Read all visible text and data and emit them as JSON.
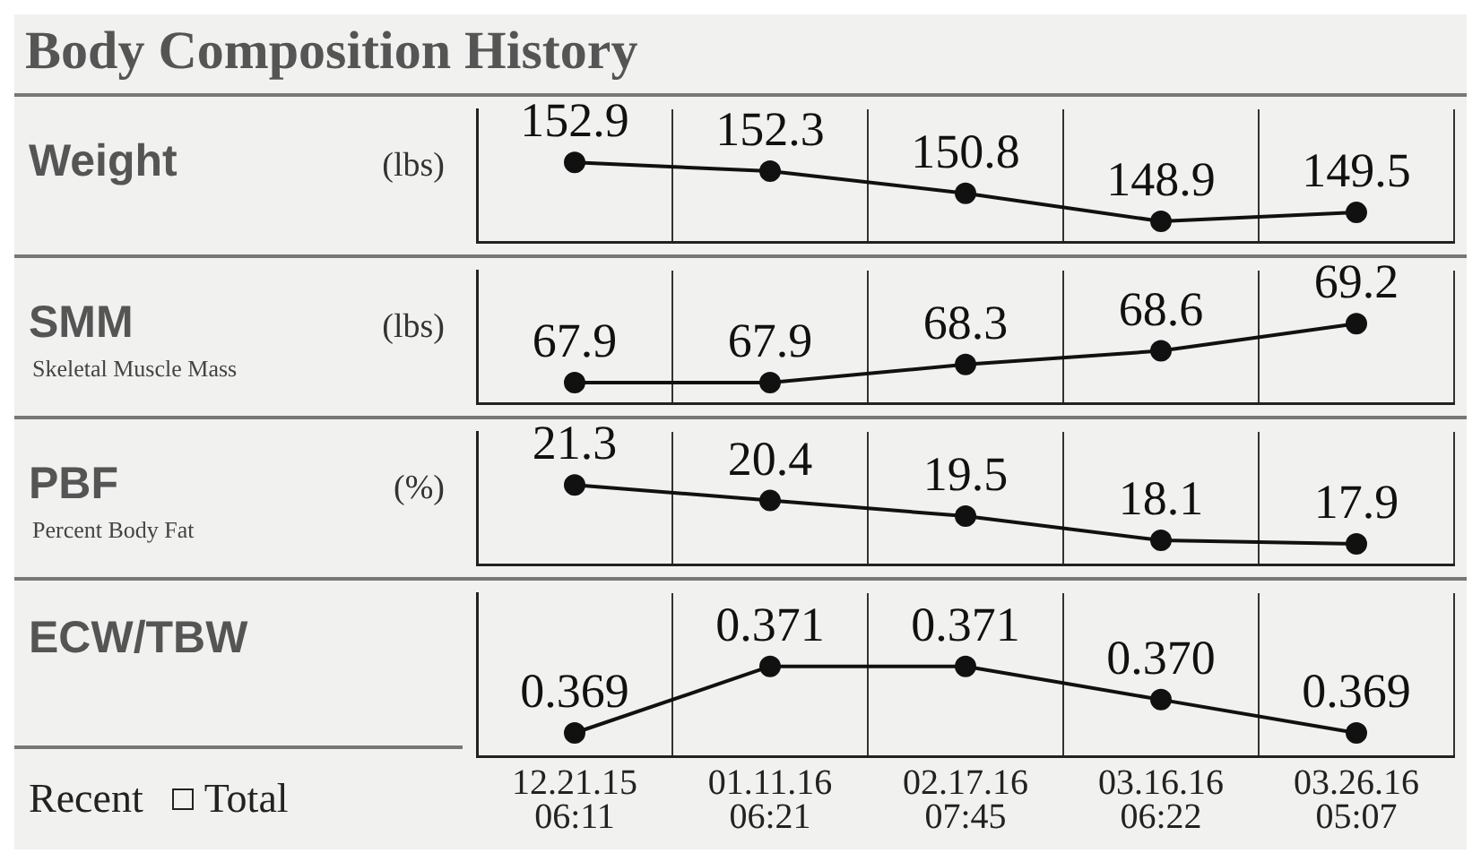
{
  "chart_data": [
    {
      "type": "line",
      "title": "Body Composition History",
      "ylabel": "Weight",
      "annotations": [
        "(lbs)"
      ],
      "categories": [
        null,
        null,
        null,
        null,
        null
      ],
      "series": [
        {
          "color": "#111111",
          "values": [
            152.9,
            152.3,
            150.8,
            148.9,
            149.5
          ]
        }
      ],
      "data_labels": true,
      "marker": "circle",
      "grid": "x",
      "tick_labels": false
    },
    {
      "type": "line",
      "ylabel": "SMM",
      "annotations": [
        "(lbs)",
        "Skeletal Muscle Mass"
      ],
      "categories": [
        null,
        null,
        null,
        null,
        null
      ],
      "series": [
        {
          "color": "#111111",
          "values": [
            67.9,
            67.9,
            68.3,
            68.6,
            69.2
          ]
        }
      ],
      "data_labels": true,
      "marker": "circle",
      "grid": "x",
      "tick_labels": false
    },
    {
      "type": "line",
      "ylabel": "PBF",
      "annotations": [
        "(%)",
        "Percent Body Fat"
      ],
      "categories": [
        null,
        null,
        null,
        null,
        null
      ],
      "series": [
        {
          "color": "#111111",
          "values": [
            21.3,
            20.4,
            19.5,
            18.1,
            17.9
          ]
        }
      ],
      "data_labels": true,
      "marker": "circle",
      "grid": "x",
      "tick_labels": false
    },
    {
      "type": "line",
      "ylabel": "ECW/TBW",
      "annotations": [
        "Recent",
        "Total"
      ],
      "categories": [
        "12.21.15 06:11",
        "01.11.16 06:21",
        "02.17.16 07:45",
        "03.16.16 06:22",
        "03.26.16 05:07"
      ],
      "series": [
        {
          "color": "#111111",
          "values": [
            0.369,
            0.371,
            0.371,
            0.37,
            0.369
          ],
          "value_labels": [
            "0.369",
            "0.371",
            "0.371",
            "0.370",
            "0.369"
          ]
        }
      ],
      "marker": "circle",
      "grid": "x",
      "tick_labels": "x"
    }
  ]
}
